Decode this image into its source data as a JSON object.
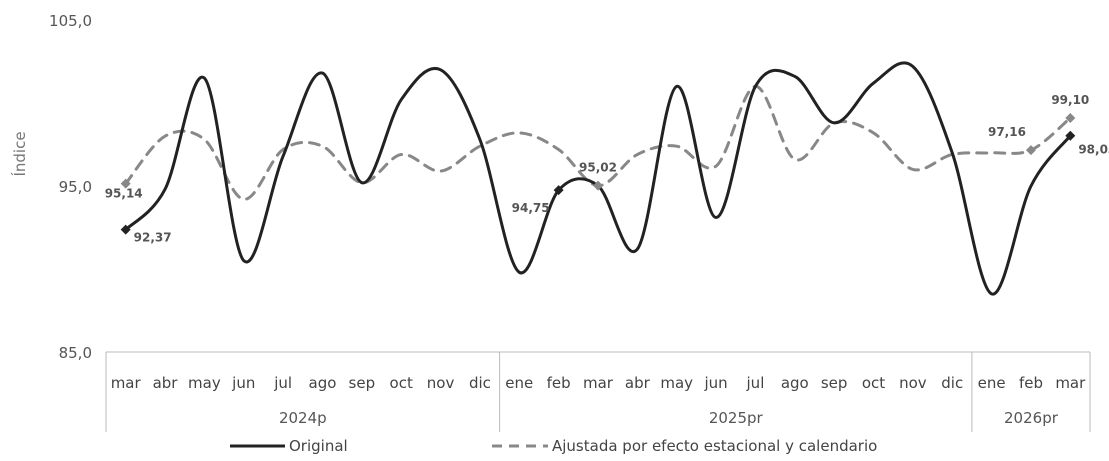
{
  "chart_data": {
    "type": "line",
    "title": "",
    "ylabel": "Índice",
    "xlabel": "",
    "ylim": [
      85,
      105
    ],
    "yticks": [
      "85,0",
      "95,0",
      "105,0"
    ],
    "grid": false,
    "legend_placement": "bottom",
    "months": [
      "mar",
      "abr",
      "may",
      "jun",
      "jul",
      "ago",
      "sep",
      "oct",
      "nov",
      "dic",
      "ene",
      "feb",
      "mar",
      "abr",
      "may",
      "jun",
      "jul",
      "ago",
      "sep",
      "oct",
      "nov",
      "dic",
      "ene",
      "feb",
      "mar"
    ],
    "year_groups": [
      {
        "label": "2024p",
        "start": 0,
        "count": 10
      },
      {
        "label": "2025pr",
        "start": 10,
        "count": 12
      },
      {
        "label": "2026pr",
        "start": 22,
        "count": 3
      }
    ],
    "series": [
      {
        "name": "Original",
        "style": "solid",
        "color": "#222222",
        "values": [
          92.37,
          94.8,
          101.5,
          90.5,
          96.8,
          101.8,
          95.2,
          100.2,
          102.0,
          97.8,
          89.8,
          94.75,
          95.02,
          91.2,
          101.0,
          93.1,
          101.0,
          101.6,
          98.8,
          101.2,
          102.2,
          97.0,
          88.5,
          95.0,
          98.03
        ]
      },
      {
        "name": "Ajustada por efecto estacional y calendario",
        "style": "dashed",
        "color": "#888888",
        "values": [
          95.14,
          98.0,
          97.8,
          94.2,
          97.2,
          97.4,
          95.2,
          96.9,
          95.9,
          97.4,
          98.2,
          97.2,
          95.02,
          96.9,
          97.4,
          96.2,
          101.0,
          96.6,
          98.8,
          98.2,
          96.0,
          96.9,
          97.0,
          97.16,
          99.1
        ]
      }
    ],
    "annotations": [
      {
        "text": "95,14",
        "index": 0,
        "series": 1
      },
      {
        "text": "92,37",
        "index": 0,
        "series": 0
      },
      {
        "text": "94,75",
        "index": 11,
        "series": 0
      },
      {
        "text": "95,02",
        "index": 12,
        "series": 1
      },
      {
        "text": "97,16",
        "index": 23,
        "series": 1
      },
      {
        "text": "99,10",
        "index": 24,
        "series": 1
      },
      {
        "text": "98,03",
        "index": 24,
        "series": 0
      }
    ]
  }
}
